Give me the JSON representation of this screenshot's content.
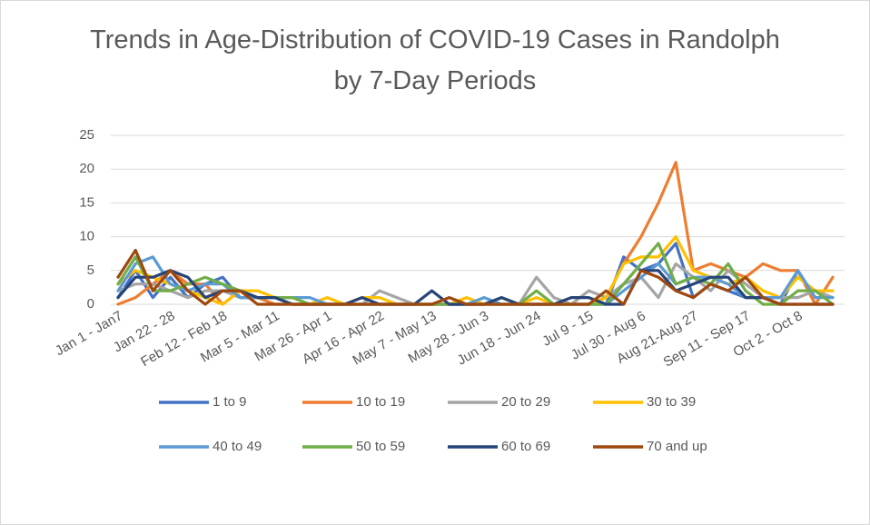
{
  "chart_data": {
    "type": "line",
    "title": "Trends in Age-Distribution of COVID-19 Cases in Randolph by 7-Day Periods",
    "categories": [
      "Jan 1 - Jan7",
      null,
      null,
      "Jan 22 - 28",
      null,
      null,
      "Feb 12 - Feb 18",
      null,
      null,
      "Mar 5 - Mar 11",
      null,
      null,
      "Mar 26 - Apr 1",
      null,
      null,
      "Apr 16 - Apr 22",
      null,
      null,
      "May 7 - May 13",
      null,
      null,
      "May 28 - Jun 3",
      null,
      null,
      "Jun 18 - Jun 24",
      null,
      null,
      "Jul 9 - 15",
      null,
      null,
      "Jul 30 - Aug 6",
      null,
      null,
      "Aug 21-Aug 27",
      null,
      null,
      "Sep 11 - Sep 17",
      null,
      null,
      "Oct 2 - Oct 8",
      null,
      null
    ],
    "series": [
      {
        "name": "1 to 9",
        "color": "#4472c4",
        "values": [
          1,
          5,
          1,
          4,
          1,
          3,
          4,
          1,
          1,
          1,
          0,
          0,
          0,
          0,
          0,
          0,
          0,
          0,
          0,
          0,
          0,
          0,
          0,
          0,
          0,
          0,
          0,
          0,
          0,
          7,
          5,
          6,
          9,
          1,
          3,
          2,
          1,
          1,
          0,
          5,
          0,
          0
        ]
      },
      {
        "name": "10 to 19",
        "color": "#ed7d31",
        "values": [
          0,
          1,
          3,
          5,
          3,
          3,
          0,
          2,
          1,
          0,
          0,
          0,
          0,
          0,
          0,
          0,
          0,
          0,
          0,
          0,
          0,
          0,
          0,
          0,
          0,
          0,
          0,
          0,
          1,
          6,
          10,
          15,
          21,
          5,
          6,
          5,
          4,
          6,
          5,
          5,
          0,
          4
        ]
      },
      {
        "name": "20 to 29",
        "color": "#a5a5a5",
        "values": [
          2,
          3,
          3,
          2,
          1,
          2,
          2,
          1,
          1,
          1,
          0,
          0,
          0,
          0,
          0,
          2,
          1,
          0,
          0,
          0,
          0,
          0,
          0,
          0,
          4,
          1,
          0,
          2,
          1,
          3,
          4,
          1,
          6,
          4,
          2,
          5,
          3,
          1,
          1,
          1,
          2,
          1
        ]
      },
      {
        "name": "30 to 39",
        "color": "#ffc000",
        "values": [
          3,
          5,
          4,
          3,
          2,
          1,
          0,
          2,
          2,
          1,
          0,
          0,
          1,
          0,
          1,
          1,
          0,
          0,
          0,
          0,
          1,
          0,
          0,
          0,
          1,
          0,
          0,
          0,
          1,
          6,
          7,
          7,
          10,
          5,
          4,
          3,
          4,
          2,
          1,
          4,
          2,
          2
        ]
      },
      {
        "name": "40 to 49",
        "color": "#5b9bd5",
        "values": [
          2,
          6,
          7,
          3,
          2,
          3,
          3,
          1,
          1,
          1,
          1,
          1,
          0,
          0,
          0,
          0,
          0,
          0,
          0,
          0,
          0,
          1,
          0,
          0,
          0,
          0,
          0,
          0,
          0,
          2,
          4,
          6,
          3,
          4,
          4,
          3,
          1,
          1,
          1,
          5,
          1,
          1
        ]
      },
      {
        "name": "50 to 59",
        "color": "#70ad47",
        "values": [
          3,
          7,
          2,
          2,
          3,
          4,
          3,
          2,
          1,
          1,
          1,
          0,
          0,
          0,
          0,
          0,
          0,
          0,
          0,
          0,
          0,
          0,
          1,
          0,
          2,
          0,
          0,
          0,
          0,
          3,
          6,
          9,
          3,
          4,
          3,
          6,
          2,
          0,
          0,
          2,
          2,
          0
        ]
      },
      {
        "name": "60 to 69",
        "color": "#264478",
        "values": [
          1,
          4,
          4,
          5,
          4,
          1,
          2,
          2,
          1,
          1,
          0,
          0,
          0,
          0,
          1,
          0,
          0,
          0,
          2,
          0,
          0,
          0,
          1,
          0,
          0,
          0,
          1,
          1,
          0,
          0,
          5,
          5,
          2,
          3,
          4,
          4,
          1,
          1,
          0,
          0,
          0,
          0
        ]
      },
      {
        "name": "70 and up",
        "color": "#9e480e",
        "values": [
          4,
          8,
          2,
          5,
          2,
          0,
          2,
          2,
          0,
          0,
          0,
          0,
          0,
          0,
          0,
          0,
          0,
          0,
          0,
          1,
          0,
          0,
          0,
          0,
          0,
          0,
          0,
          0,
          2,
          0,
          5,
          4,
          2,
          1,
          3,
          2,
          4,
          1,
          0,
          0,
          0,
          0
        ]
      }
    ],
    "ylim": [
      0,
      25
    ],
    "yticks": [
      0,
      5,
      10,
      15,
      20,
      25
    ],
    "grid": true,
    "legend": "bottom"
  }
}
